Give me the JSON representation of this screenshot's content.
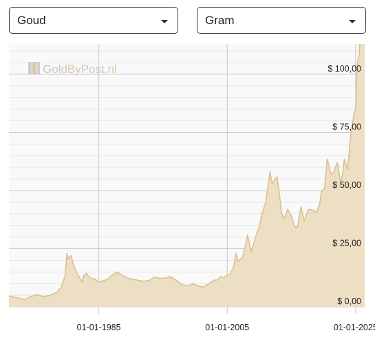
{
  "controls": {
    "metal": {
      "value": "Goud"
    },
    "unit": {
      "value": "Gram"
    }
  },
  "watermark": {
    "part1": "Gold",
    "part2": "By",
    "part3": "Post",
    "part4": ".nl"
  },
  "colors": {
    "area_fill": "#ecdfc4",
    "line": "#dcc08e",
    "grid_major": "#c9c9c9",
    "grid_minor": "#e6e6e6",
    "plot_bg": "#f9f9f9",
    "watermark_accent": "#d8c7a4"
  },
  "chart_data": {
    "type": "area",
    "title": "",
    "xlabel": "",
    "ylabel": "",
    "currency": "$",
    "unit": "Gram",
    "grid": true,
    "ylim": [
      0,
      113
    ],
    "xlim": [
      "1971-01-01",
      "2026-06-01"
    ],
    "y_ticks": [
      {
        "value": 0,
        "label": "$ 0,00"
      },
      {
        "value": 25,
        "label": "$ 25,00"
      },
      {
        "value": 50,
        "label": "$ 50,00"
      },
      {
        "value": 75,
        "label": "$ 75,00"
      },
      {
        "value": 100,
        "label": "$ 100,00"
      }
    ],
    "x_ticks": [
      {
        "value": "1985-01-01",
        "label": "01-01-1985"
      },
      {
        "value": "2005-01-01",
        "label": "01-01-2005"
      },
      {
        "value": "2025-01-01",
        "label": "01-01-2025"
      }
    ],
    "series": [
      {
        "x": [
          "1971-01-01",
          "1972-06-01",
          "1973-06-01",
          "1974-06-01",
          "1975-06-01",
          "1976-06-01",
          "1977-06-01",
          "1978-06-01",
          "1979-03-01",
          "1979-10-01",
          "1980-01-15",
          "1980-03-01",
          "1980-06-01",
          "1980-09-01",
          "1981-01-01",
          "1981-06-01",
          "1982-01-01",
          "1982-06-01",
          "1982-09-01",
          "1983-02-01",
          "1983-06-01",
          "1984-01-01",
          "1984-06-01",
          "1985-01-01",
          "1985-06-01",
          "1986-01-01",
          "1986-06-01",
          "1987-01-01",
          "1987-12-01",
          "1988-06-01",
          "1989-01-01",
          "1989-06-01",
          "1990-01-01",
          "1991-01-01",
          "1992-01-01",
          "1993-01-01",
          "1993-08-01",
          "1994-06-01",
          "1995-06-01",
          "1996-02-01",
          "1997-01-01",
          "1998-01-01",
          "1999-01-01",
          "1999-10-01",
          "2000-06-01",
          "2001-04-01",
          "2002-01-01",
          "2002-06-01",
          "2003-01-01",
          "2003-06-01",
          "2004-01-01",
          "2004-06-01",
          "2005-01-01",
          "2005-06-01",
          "2006-01-01",
          "2006-05-01",
          "2006-10-01",
          "2007-06-01",
          "2007-12-01",
          "2008-03-01",
          "2008-10-01",
          "2009-06-01",
          "2010-01-01",
          "2010-06-01",
          "2011-01-01",
          "2011-09-01",
          "2012-01-01",
          "2012-10-01",
          "2013-04-01",
          "2013-07-01",
          "2013-12-01",
          "2014-06-01",
          "2015-01-01",
          "2015-07-01",
          "2015-12-01",
          "2016-07-01",
          "2017-01-01",
          "2017-09-01",
          "2018-06-01",
          "2018-12-01",
          "2019-06-01",
          "2019-09-01",
          "2020-03-01",
          "2020-08-01",
          "2021-03-01",
          "2021-08-01",
          "2022-03-01",
          "2022-10-01",
          "2023-04-01",
          "2023-10-01",
          "2024-01-01",
          "2024-04-01",
          "2024-10-01",
          "2025-01-01",
          "2025-04-01",
          "2025-08-01",
          "2025-10-01",
          "2026-01-01",
          "2026-03-01",
          "2026-06-01"
        ],
        "y": [
          4.7,
          3.8,
          3.2,
          4.5,
          5.2,
          4.4,
          5.0,
          6.2,
          8.5,
          13.5,
          23.0,
          20.5,
          21.5,
          22.0,
          18.5,
          15.5,
          12.5,
          10.5,
          13.5,
          14.5,
          13.0,
          12.0,
          12.0,
          10.5,
          11.0,
          11.5,
          12.0,
          13.5,
          15.0,
          14.0,
          13.0,
          12.5,
          12.0,
          11.5,
          11.0,
          11.5,
          12.8,
          12.3,
          12.3,
          13.0,
          11.5,
          9.5,
          9.0,
          10.0,
          9.0,
          8.5,
          9.7,
          10.5,
          11.5,
          11.5,
          13.0,
          12.5,
          13.5,
          14.0,
          17.0,
          23.0,
          19.5,
          21.5,
          27.0,
          31.0,
          23.5,
          30.0,
          34.5,
          40.0,
          45.0,
          58.0,
          53.0,
          56.0,
          46.0,
          40.0,
          38.0,
          42.0,
          39.0,
          34.5,
          34.0,
          43.0,
          37.0,
          42.0,
          41.5,
          40.5,
          44.5,
          49.5,
          51.0,
          63.5,
          57.0,
          58.0,
          62.0,
          52.5,
          63.5,
          59.0,
          66.5,
          74.0,
          83.0,
          85.0,
          104.5,
          109.0,
          127.0,
          118.0,
          122.0,
          114.0
        ]
      }
    ]
  }
}
